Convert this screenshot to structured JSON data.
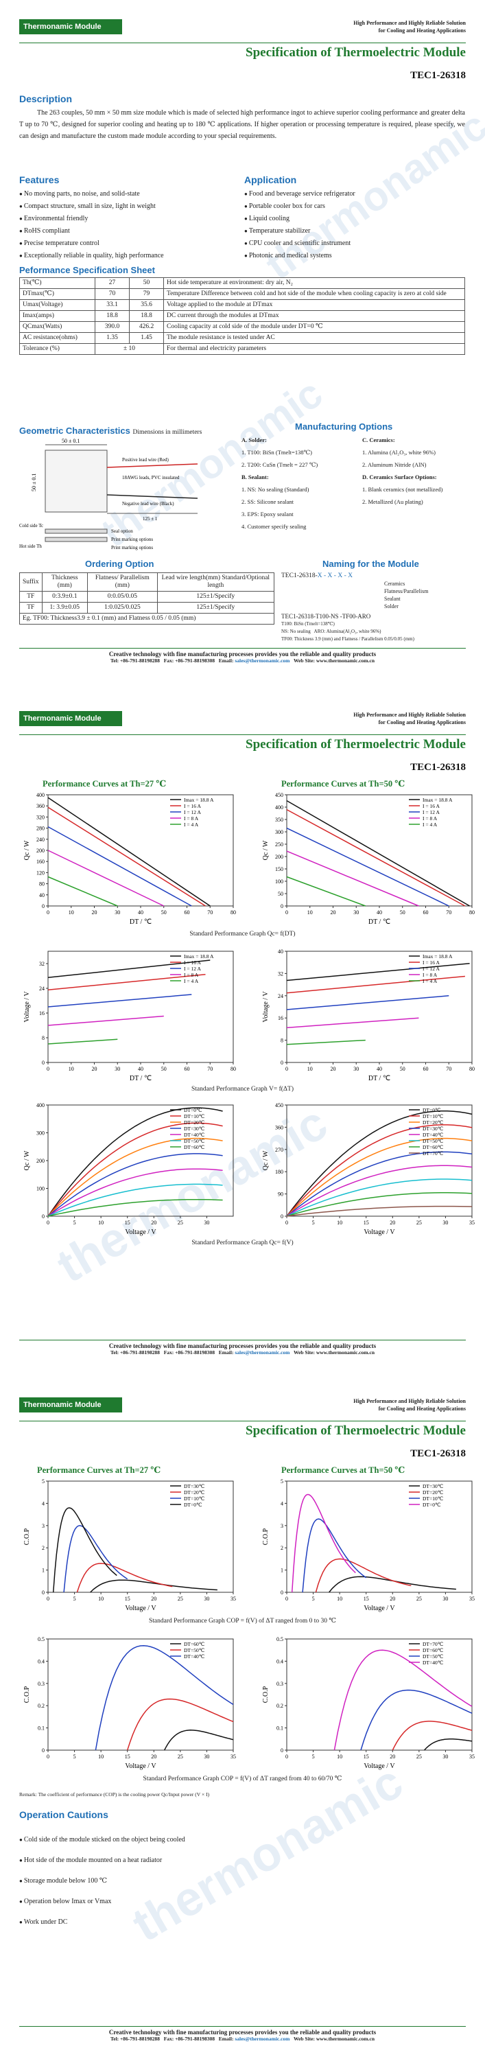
{
  "brand": "Thermonamic Module",
  "tagline1": "High Performance and Highly Reliable Solution",
  "tagline2": "for Cooling and Heating Applications",
  "title": "Specification of Thermoelectric Module",
  "model": "TEC1-26318",
  "watermark": "thermonamic",
  "description": {
    "heading": "Description",
    "text": "The 263 couples, 50 mm × 50 mm size module which is made of selected high performance ingot to achieve superior cooling performance and greater delta T up to 70 ℃, designed for superior cooling and heating up to 180 ℃ applications. If higher operation or processing temperature is required, please specify, we can design and manufacture the custom made module according to your special requirements."
  },
  "features": {
    "heading": "Features",
    "items": [
      "No moving parts, no noise, and solid-state",
      "Compact structure, small in size, light in weight",
      "Environmental friendly",
      "RoHS compliant",
      "Precise temperature control",
      "Exceptionally reliable in quality, high performance"
    ]
  },
  "application": {
    "heading": "Application",
    "items": [
      "Food and beverage service refrigerator",
      "Portable cooler box for cars",
      "Liquid cooling",
      "Temperature stabilizer",
      "CPU cooler and scientific instrument",
      "Photonic and medical systems"
    ]
  },
  "perf": {
    "heading": "Peformance Specification Sheet",
    "rows": [
      [
        "Th(℃)",
        "27",
        "50",
        "Hot side temperature at environment: dry air, N₂"
      ],
      [
        "DTmax(℃)",
        "70",
        "79",
        "Temperature Difference between cold and hot side of the module when cooling capacity is zero at cold side"
      ],
      [
        "Umax(Voltage)",
        "33.1",
        "35.6",
        "Voltage applied to the module at DTmax"
      ],
      [
        "Imax(amps)",
        "18.8",
        "18.8",
        "DC current through the modules at DTmax"
      ],
      [
        "QCmax(Watts)",
        "390.0",
        "426.2",
        "Cooling capacity at cold side of the module under DT=0 ℃"
      ],
      [
        "AC resistance(ohms)",
        "1.35",
        "1.45",
        "The module resistance is tested under AC"
      ],
      [
        "Tolerance (%)",
        "± 10",
        "",
        "For thermal and electricity parameters"
      ]
    ]
  },
  "geo": {
    "heading": "Geometric Characteristics",
    "sub": "Dimensions in millimeters",
    "dim1": "50 ± 0.1",
    "dim2": "50 ± 0.1",
    "dim3": "125 ± 1",
    "l1": "Positive lead wire (Red)",
    "l2": "18AWG leads, PVC insulated",
    "l3": "Negative lead wire (Black)",
    "l4": "Cold side Tc",
    "l5": "Hot side Th",
    "l6": "Seal option",
    "l7": "Print marking options",
    "l8": "Print marking options"
  },
  "mfg": {
    "heading": "Manufacturing Options",
    "a_title": "A. Solder:",
    "a": [
      "1. T100: BiSn (Tmelt=138℃)",
      "2. T200: CuSn (Tmelt = 227 ℃)"
    ],
    "b_title": "B. Sealant:",
    "b": [
      "1. NS: No sealing (Standard)",
      "2. SS: Silicone sealant",
      "3. EPS: Epoxy sealant",
      "4. Customer specify sealing"
    ],
    "c_title": "C. Ceramics:",
    "c": [
      "1. Alumina (Al₂O₃, white 96%)",
      "2. Aluminum Nitride (AlN)"
    ],
    "d_title": "D. Ceramics Surface Options:",
    "d": [
      "1. Blank ceramics (not metallized)",
      "2. Metallized (Au plating)"
    ]
  },
  "ordering": {
    "heading": "Ordering Option",
    "headers": [
      "Suffix",
      "Thickness (mm)",
      "Flatness/ Parallelism (mm)",
      "Lead wire length(mm) Standard/Optional length"
    ],
    "rows": [
      [
        "TF",
        "0:3.9±0.1",
        "0:0.05/0.05",
        "125±1/Specify"
      ],
      [
        "TF",
        "1: 3.9±0.05",
        "1:0.025/0.025",
        "125±1/Specify"
      ]
    ],
    "note": "Eg. TF00: Thickness3.9 ± 0.1 (mm) and Flatness 0.05 / 0.05 (mm)"
  },
  "naming": {
    "heading": "Naming for the Module",
    "code": "TEC1-26318-",
    "xs": "X - X - X - X",
    "parts": [
      "Ceramics",
      "Flatness/Parallelism",
      "Sealant",
      "Solder"
    ],
    "example": "TEC1-26318-T100-NS -TF00-ARO",
    "ex1": "T100: BiSn (Tmelt=138℃)",
    "ex2": "NS: No sealing",
    "ex3": "ARO: Alumina(Al₂O₃, white 96%)",
    "ex4": "TF00: Thickness 3.9 (mm) and Flatness / Parallelism 0.05/0.05 (mm)"
  },
  "footer": {
    "l1": "Creative technology with fine manufacturing processes provides you the reliable and quality products",
    "tel": "Tel: +86-791-88198288",
    "fax": "Fax: +86-791-88198308",
    "email_label": "Email:",
    "email": "sales@thermonamic.com",
    "web": "Web Site: www.thermonamic.com.cn"
  },
  "page2": {
    "g1": "Performance Curves at Th=27 ℃",
    "g2": "Performance Curves at Th=50 ℃",
    "cap1": "Standard Performance Graph Qc= f(DT)",
    "cap2": "Standard Performance Graph V= f(ΔT)",
    "cap3": "Standard Performance Graph Qc= f(V)"
  },
  "page3": {
    "g1": "Performance Curves at Th=27 ℃",
    "g2": "Performance Curves at Th=50 ℃",
    "cap1": "Standard Performance Graph COP = f(V) of ΔT ranged from 0 to 30 ℃",
    "cap2": "Standard Performance Graph COP = f(V) of ΔT ranged from 40 to 60/70 ℃",
    "remark": "Remark: The coefficient of performance (COP) is the cooling power Qc/Input power (V × I)"
  },
  "cautions": {
    "heading": "Operation Cautions",
    "items": [
      "Cold side of the module sticked on the object being cooled",
      "Hot side of the module mounted on a heat radiator",
      "Storage module below 100 ℃",
      "Operation below Imax or Vmax",
      "Work under DC"
    ]
  },
  "chart_data": [
    {
      "id": "qc_dt_27",
      "type": "line",
      "xlabel": "DT / ℃",
      "ylabel": "Qc / W",
      "xlim": [
        0,
        80
      ],
      "ylim": [
        0,
        400
      ],
      "xticks": [
        0,
        10,
        20,
        30,
        40,
        50,
        60,
        70,
        80
      ],
      "yticks": [
        0,
        40,
        80,
        120,
        160,
        200,
        240,
        280,
        320,
        360,
        400
      ],
      "series": [
        {
          "name": "Imax = 18.8 A",
          "color": "#111111",
          "x": [
            0,
            70
          ],
          "y": [
            390,
            0
          ]
        },
        {
          "name": "I = 16 A",
          "color": "#d62728",
          "x": [
            0,
            68
          ],
          "y": [
            355,
            0
          ]
        },
        {
          "name": "I = 12 A",
          "color": "#1f3fbf",
          "x": [
            0,
            62
          ],
          "y": [
            285,
            0
          ]
        },
        {
          "name": "I = 8 A",
          "color": "#d020c0",
          "x": [
            0,
            50
          ],
          "y": [
            200,
            0
          ]
        },
        {
          "name": "I = 4 A",
          "color": "#2ca02c",
          "x": [
            0,
            30
          ],
          "y": [
            105,
            0
          ]
        }
      ]
    },
    {
      "id": "qc_dt_50",
      "type": "line",
      "xlabel": "DT / ℃",
      "ylabel": "Qc / W",
      "xlim": [
        0,
        80
      ],
      "ylim": [
        0,
        450
      ],
      "xticks": [
        0,
        10,
        20,
        30,
        40,
        50,
        60,
        70,
        80
      ],
      "yticks": [
        0,
        50,
        100,
        150,
        200,
        250,
        300,
        350,
        400,
        450
      ],
      "series": [
        {
          "name": "Imax = 18.8 A",
          "color": "#111111",
          "x": [
            0,
            79
          ],
          "y": [
            426,
            0
          ]
        },
        {
          "name": "I = 16 A",
          "color": "#d62728",
          "x": [
            0,
            77
          ],
          "y": [
            390,
            0
          ]
        },
        {
          "name": "I = 12 A",
          "color": "#1f3fbf",
          "x": [
            0,
            70
          ],
          "y": [
            315,
            0
          ]
        },
        {
          "name": "I = 8 A",
          "color": "#d020c0",
          "x": [
            0,
            57
          ],
          "y": [
            222,
            0
          ]
        },
        {
          "name": "I = 4 A",
          "color": "#2ca02c",
          "x": [
            0,
            34
          ],
          "y": [
            118,
            0
          ]
        }
      ]
    },
    {
      "id": "v_dt_27",
      "type": "line",
      "xlabel": "DT / ℃",
      "ylabel": "Voltage / V",
      "xlim": [
        0,
        80
      ],
      "ylim": [
        0,
        36
      ],
      "xticks": [
        0,
        10,
        20,
        30,
        40,
        50,
        60,
        70,
        80
      ],
      "yticks": [
        0,
        8,
        16,
        24,
        32
      ],
      "series": [
        {
          "name": "Imax = 18.8 A",
          "color": "#111111",
          "x": [
            0,
            70
          ],
          "y": [
            27.5,
            33.1
          ]
        },
        {
          "name": "I = 16 A",
          "color": "#d62728",
          "x": [
            0,
            68
          ],
          "y": [
            23.5,
            28.5
          ]
        },
        {
          "name": "I = 12 A",
          "color": "#1f3fbf",
          "x": [
            0,
            62
          ],
          "y": [
            18,
            22
          ]
        },
        {
          "name": "I = 8 A",
          "color": "#d020c0",
          "x": [
            0,
            50
          ],
          "y": [
            12,
            15
          ]
        },
        {
          "name": "I = 4 A",
          "color": "#2ca02c",
          "x": [
            0,
            30
          ],
          "y": [
            6,
            7.5
          ]
        }
      ]
    },
    {
      "id": "v_dt_50",
      "type": "line",
      "xlabel": "DT / ℃",
      "ylabel": "Voltage / V",
      "xlim": [
        0,
        80
      ],
      "ylim": [
        0,
        40
      ],
      "xticks": [
        0,
        10,
        20,
        30,
        40,
        50,
        60,
        70,
        80
      ],
      "yticks": [
        0,
        8,
        16,
        24,
        32,
        40
      ],
      "series": [
        {
          "name": "Imax = 18.8 A",
          "color": "#111111",
          "x": [
            0,
            79
          ],
          "y": [
            29.5,
            35.6
          ]
        },
        {
          "name": "I = 16 A",
          "color": "#d62728",
          "x": [
            0,
            77
          ],
          "y": [
            25,
            31
          ]
        },
        {
          "name": "I = 12 A",
          "color": "#1f3fbf",
          "x": [
            0,
            70
          ],
          "y": [
            19,
            24
          ]
        },
        {
          "name": "I = 8 A",
          "color": "#d020c0",
          "x": [
            0,
            57
          ],
          "y": [
            12.5,
            16
          ]
        },
        {
          "name": "I = 4 A",
          "color": "#2ca02c",
          "x": [
            0,
            34
          ],
          "y": [
            6.5,
            8
          ]
        }
      ]
    },
    {
      "id": "qc_v_27",
      "type": "line",
      "xlabel": "Voltage / V",
      "ylabel": "Qc / W",
      "xlim": [
        0,
        35
      ],
      "ylim": [
        0,
        400
      ],
      "xticks": [
        0,
        5,
        10,
        15,
        20,
        25,
        30
      ],
      "yticks": [
        0,
        100,
        200,
        300,
        400
      ],
      "series": [
        {
          "name": "DT=0℃",
          "color": "#111111",
          "peak": 390,
          "vmax": 33
        },
        {
          "name": "DT=10℃",
          "color": "#d62728",
          "peak": 335,
          "vmax": 33
        },
        {
          "name": "DT=20℃",
          "color": "#ff7f0e",
          "peak": 280,
          "vmax": 33
        },
        {
          "name": "DT=30℃",
          "color": "#1f3fbf",
          "peak": 225,
          "vmax": 33
        },
        {
          "name": "DT=40℃",
          "color": "#d020c0",
          "peak": 170,
          "vmax": 33
        },
        {
          "name": "DT=50℃",
          "color": "#17becf",
          "peak": 115,
          "vmax": 33
        },
        {
          "name": "DT=60℃",
          "color": "#2ca02c",
          "peak": 60,
          "vmax": 33
        }
      ]
    },
    {
      "id": "qc_v_50",
      "type": "line",
      "xlabel": "Voltage / V",
      "ylabel": "Qc / W",
      "xlim": [
        0,
        35
      ],
      "ylim": [
        0,
        450
      ],
      "xticks": [
        0,
        5,
        10,
        15,
        20,
        25,
        30,
        35
      ],
      "yticks": [
        0,
        90,
        180,
        270,
        360,
        450
      ],
      "series": [
        {
          "name": "DT=0℃",
          "color": "#111111",
          "peak": 426,
          "vmax": 35
        },
        {
          "name": "DT=10℃",
          "color": "#d62728",
          "peak": 370,
          "vmax": 35
        },
        {
          "name": "DT=20℃",
          "color": "#ff7f0e",
          "peak": 315,
          "vmax": 35
        },
        {
          "name": "DT=30℃",
          "color": "#1f3fbf",
          "peak": 260,
          "vmax": 35
        },
        {
          "name": "DT=40℃",
          "color": "#d020c0",
          "peak": 205,
          "vmax": 35
        },
        {
          "name": "DT=50℃",
          "color": "#17becf",
          "peak": 150,
          "vmax": 35
        },
        {
          "name": "DT=60℃",
          "color": "#2ca02c",
          "peak": 95,
          "vmax": 35
        },
        {
          "name": "DT=70℃",
          "color": "#8c564b",
          "peak": 40,
          "vmax": 35
        }
      ]
    },
    {
      "id": "cop_low_27",
      "type": "line",
      "xlabel": "Voltage / V",
      "ylabel": "C.O.P",
      "xlim": [
        0,
        35
      ],
      "ylim": [
        0,
        5
      ],
      "xticks": [
        0,
        5,
        10,
        15,
        20,
        25,
        30,
        35
      ],
      "yticks": [
        0,
        1,
        2,
        3,
        4,
        5
      ],
      "series": [
        {
          "name": "DT=30℃",
          "color": "#111111",
          "v0": 8,
          "peakv": 14,
          "peak": 0.55
        },
        {
          "name": "DT=20℃",
          "color": "#d62728",
          "v0": 5.5,
          "peakv": 10,
          "peak": 1.3
        },
        {
          "name": "DT=10℃",
          "color": "#1f3fbf",
          "v0": 3,
          "peakv": 6,
          "peak": 3.0
        },
        {
          "name": "DT=0℃",
          "color": "#111111",
          "v0": 1,
          "peakv": 4,
          "peak": 3.8
        }
      ]
    },
    {
      "id": "cop_low_50",
      "type": "line",
      "xlabel": "Voltage / V",
      "ylabel": "C.O.P",
      "xlim": [
        0,
        35
      ],
      "ylim": [
        0,
        5
      ],
      "xticks": [
        0,
        5,
        10,
        15,
        20,
        25,
        30,
        35
      ],
      "yticks": [
        0,
        1,
        2,
        3,
        4,
        5
      ],
      "series": [
        {
          "name": "DT=30℃",
          "color": "#111111",
          "v0": 8,
          "peakv": 14,
          "peak": 0.7
        },
        {
          "name": "DT=20℃",
          "color": "#d62728",
          "v0": 5.5,
          "peakv": 10,
          "peak": 1.5
        },
        {
          "name": "DT=10℃",
          "color": "#1f3fbf",
          "v0": 3,
          "peakv": 6,
          "peak": 3.3
        },
        {
          "name": "DT=0℃",
          "color": "#d020c0",
          "v0": 1,
          "peakv": 4,
          "peak": 4.4
        }
      ]
    },
    {
      "id": "cop_high_27",
      "type": "line",
      "xlabel": "Voltage / V",
      "ylabel": "C.O.P",
      "xlim": [
        0,
        35
      ],
      "ylim": [
        0,
        0.5
      ],
      "xticks": [
        0,
        5,
        10,
        15,
        20,
        25,
        30,
        35
      ],
      "yticks": [
        0,
        0.1,
        0.2,
        0.3,
        0.4,
        0.5
      ],
      "series": [
        {
          "name": "DT=60℃",
          "color": "#111111",
          "v0": 22,
          "peakv": 27,
          "peak": 0.09
        },
        {
          "name": "DT=50℃",
          "color": "#d62728",
          "v0": 15,
          "peakv": 23,
          "peak": 0.23
        },
        {
          "name": "DT=40℃",
          "color": "#1f3fbf",
          "v0": 9,
          "peakv": 18,
          "peak": 0.47
        }
      ]
    },
    {
      "id": "cop_high_50",
      "type": "line",
      "xlabel": "Voltage / V",
      "ylabel": "C.O.P",
      "xlim": [
        0,
        35
      ],
      "ylim": [
        0,
        0.5
      ],
      "xticks": [
        0,
        5,
        10,
        15,
        20,
        25,
        30,
        35
      ],
      "yticks": [
        0,
        0.1,
        0.2,
        0.3,
        0.4,
        0.5
      ],
      "series": [
        {
          "name": "DT=70℃",
          "color": "#111111",
          "v0": 26,
          "peakv": 31,
          "peak": 0.05
        },
        {
          "name": "DT=60℃",
          "color": "#d62728",
          "v0": 20,
          "peakv": 27,
          "peak": 0.13
        },
        {
          "name": "DT=50℃",
          "color": "#1f3fbf",
          "v0": 14,
          "peakv": 23,
          "peak": 0.27
        },
        {
          "name": "DT=40℃",
          "color": "#d020c0",
          "v0": 9,
          "peakv": 18,
          "peak": 0.45
        }
      ]
    }
  ]
}
